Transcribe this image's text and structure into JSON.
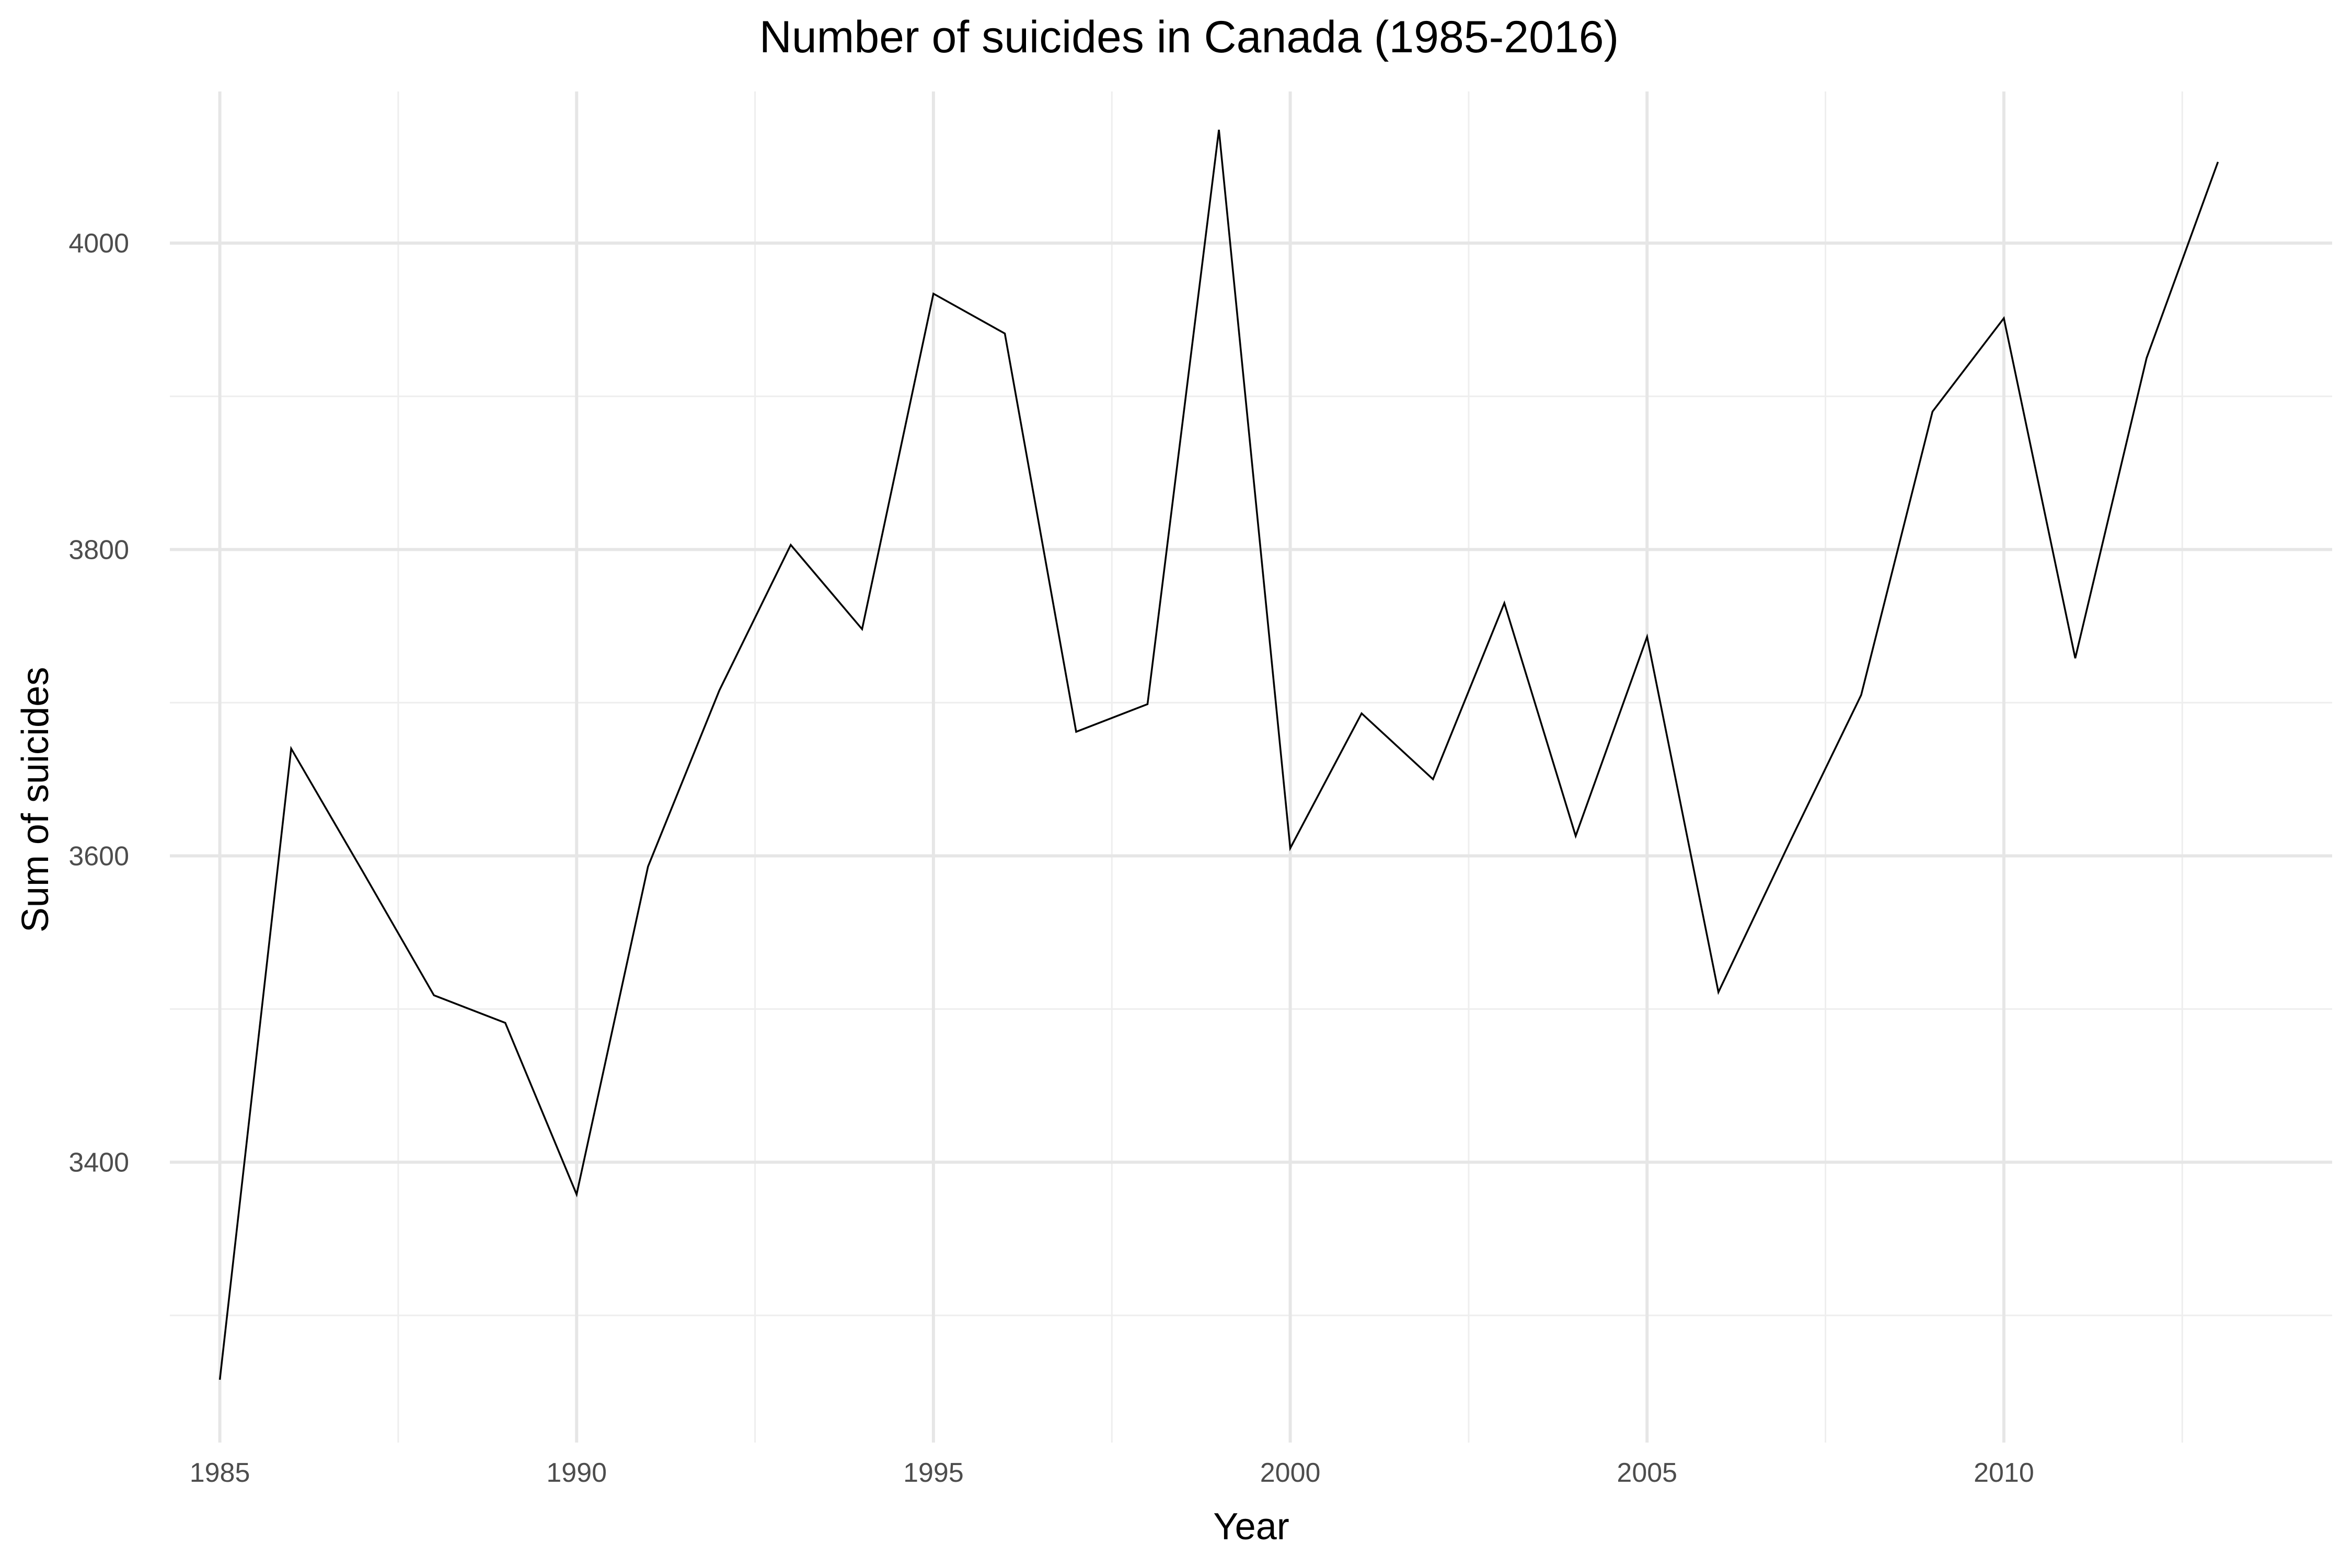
{
  "chart_data": {
    "type": "line",
    "title": "Number of suicides in Canada (1985-2016)",
    "xlabel": "Year",
    "ylabel": "Sum of suicides",
    "xlim": [
      1984.3,
      2014.6
    ],
    "ylim": [
      3217,
      4099
    ],
    "x_ticks": [
      1985,
      1990,
      1995,
      2000,
      2005,
      2010
    ],
    "x_minor_ticks": [
      1987.5,
      1992.5,
      1997.5,
      2002.5,
      2007.5,
      2012.5
    ],
    "y_ticks": [
      3400,
      3600,
      3800,
      4000
    ],
    "y_minor_ticks": [
      3300,
      3500,
      3700,
      3900
    ],
    "grid": true,
    "legend": "none",
    "line_color": "#000000",
    "x": [
      1985,
      1986,
      1987,
      1988,
      1989,
      1990,
      1991,
      1992,
      1993,
      1994,
      1995,
      1996,
      1997,
      1998,
      1999,
      2000,
      2001,
      2002,
      2003,
      2004,
      2005,
      2006,
      2007,
      2008,
      2009,
      2010,
      2011,
      2012,
      2013
    ],
    "y": [
      3258,
      3670,
      3590,
      3509,
      3491,
      3379,
      3593,
      3708,
      3803,
      3748,
      3967,
      3941,
      3681,
      3699,
      4074,
      3605,
      3693,
      3650,
      3765,
      3613,
      3743,
      3511,
      3609,
      3705,
      3890,
      3951,
      3729,
      3925,
      4053
    ]
  }
}
